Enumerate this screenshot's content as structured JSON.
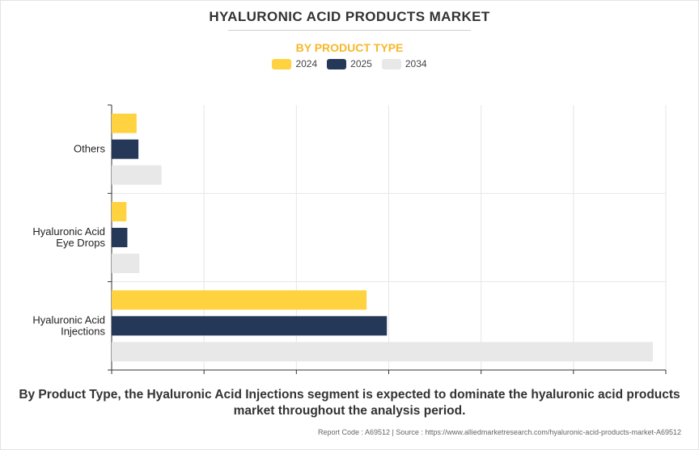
{
  "header": {
    "title": "HYALURONIC ACID PRODUCTS MARKET",
    "subtitle": "BY PRODUCT TYPE"
  },
  "legend": [
    {
      "label": "2024",
      "color": "#ffd23f"
    },
    {
      "label": "2025",
      "color": "#253858"
    },
    {
      "label": "2034",
      "color": "#e8e8e8"
    }
  ],
  "chart_data": {
    "type": "bar",
    "orientation": "horizontal",
    "categories": [
      "Others",
      "Hyaluronic Acid Eye Drops",
      "Hyaluronic Acid Injections"
    ],
    "category_label_lines": [
      [
        "Others"
      ],
      [
        "Hyaluronic Acid",
        "Eye Drops"
      ],
      [
        "Hyaluronic Acid",
        "Injections"
      ]
    ],
    "series": [
      {
        "name": "2024",
        "color": "#ffd23f",
        "values": [
          0.27,
          0.16,
          2.76
        ]
      },
      {
        "name": "2025",
        "color": "#253858",
        "values": [
          0.29,
          0.17,
          2.98
        ]
      },
      {
        "name": "2034",
        "color": "#e8e8e8",
        "values": [
          0.54,
          0.3,
          5.86
        ]
      }
    ],
    "xlim": [
      0,
      6
    ],
    "x_grid_step": 1,
    "tick_labels_shown": false,
    "grid": true,
    "legend_position": "top-center"
  },
  "footer": {
    "caption": "By Product Type, the Hyaluronic Acid Injections segment is expected to dominate the hyaluronic acid products market throughout the analysis period.",
    "source": "Report Code : A69512  |  Source : https://www.alliedmarketresearch.com/hyaluronic-acid-products-market-A69512"
  }
}
